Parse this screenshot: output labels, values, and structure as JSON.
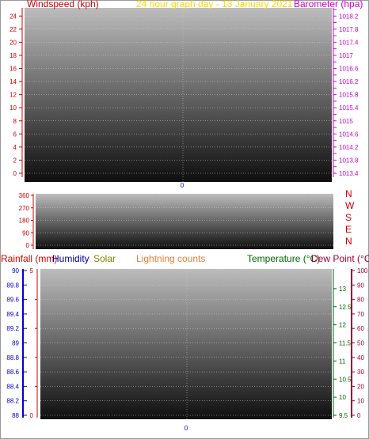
{
  "chart_data": [
    {
      "type": "line",
      "panel": "wind-baro",
      "title": "24 hour graph day - 13 January 2021",
      "left_axis": {
        "label": "Windspeed (kph)",
        "range": [
          0,
          25
        ],
        "ticks": [
          "0",
          "2",
          "4",
          "6",
          "8",
          "10",
          "12",
          "14",
          "16",
          "18",
          "20",
          "22",
          "24"
        ]
      },
      "right_axis": {
        "label": "Barometer (hpa)",
        "range": [
          1013.4,
          1018.4
        ],
        "ticks": [
          "1013.4",
          "1013.6",
          "1013.8",
          "1014",
          "1014.2",
          "1014.4",
          "1014.6",
          "1014.8",
          "1015",
          "1015.2",
          "1015.4",
          "1015.6",
          "1015.8",
          "1016",
          "1016.2",
          "1016.4",
          "1016.6",
          "1016.8",
          "1017",
          "1017.2",
          "1017.4",
          "1017.6",
          "1017.8",
          "1018",
          "1018.2",
          "1018.4"
        ]
      },
      "x_ticks": [
        "0"
      ],
      "series": []
    },
    {
      "type": "scatter",
      "panel": "wind-direction",
      "left_axis": {
        "range": [
          0,
          360
        ],
        "ticks": [
          "0",
          "90",
          "180",
          "270",
          "360"
        ]
      },
      "right_labels": [
        "N",
        "W",
        "S",
        "E",
        "N"
      ],
      "series": []
    },
    {
      "type": "line",
      "panel": "rain-temp",
      "legend": [
        "Rainfall (mm)",
        "Humidity",
        "Solar",
        "Lightning counts",
        "Temperature (°C)",
        "Dew Point (°C)"
      ],
      "rain_axis": {
        "range": [
          88,
          90
        ],
        "ticks": [
          "88",
          "88.2",
          "88.4",
          "88.6",
          "88.8",
          "89",
          "89.2",
          "89.4",
          "89.6",
          "89.8",
          "90"
        ]
      },
      "lightning_axis": {
        "range": [
          0,
          5
        ],
        "ticks": [
          "0",
          "5"
        ]
      },
      "temp_axis": {
        "range": [
          9.5,
          13.5
        ],
        "ticks": [
          "9.5",
          "10",
          "10.5",
          "11",
          "11.5",
          "12",
          "12.5",
          "13"
        ]
      },
      "humidity_axis": {
        "range": [
          0,
          100
        ],
        "ticks": [
          "0",
          "10",
          "20",
          "30",
          "40",
          "50",
          "60",
          "70",
          "80",
          "90",
          "100"
        ]
      },
      "x_ticks": [
        "0"
      ],
      "series": []
    }
  ],
  "colors": {
    "windspeed": "#cc0000",
    "title": "#ffd700",
    "barometer": "#cc00cc",
    "rainfall": "#cc0000",
    "humidity": "#000099",
    "solar": "#808000",
    "lightning": "#e08040",
    "temperature": "#006600",
    "dewpoint": "#990033",
    "rain_axis": "#0000cc",
    "x_tick": "#0000cc"
  }
}
